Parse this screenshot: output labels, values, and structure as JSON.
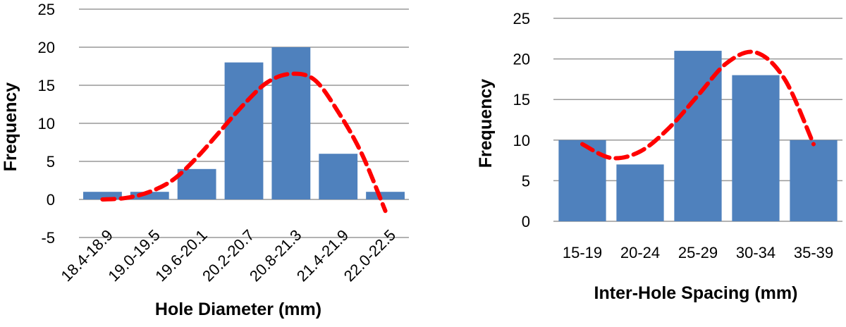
{
  "chart_data": [
    {
      "type": "bar",
      "title": "",
      "xlabel": "Hole Diameter (mm)",
      "ylabel": "Frequency",
      "categories": [
        "18.4-18.9",
        "19.0-19.5",
        "19.6-20.1",
        "20.2-20.7",
        "20.8-21.3",
        "21.4-21.9",
        "22.0-22.5"
      ],
      "values": [
        1,
        1,
        4,
        18,
        20,
        6,
        1
      ],
      "ylim": [
        -5,
        25
      ],
      "yticks": [
        "25",
        "20",
        "15",
        "10",
        "5",
        "0",
        "-5"
      ],
      "grid": true,
      "bar_color": "#4F81BD",
      "trend": {
        "style": "dashed",
        "color": "#FF0000",
        "x": [
          0,
          0.5,
          1,
          1.5,
          2,
          2.5,
          3,
          3.5,
          4,
          4.5,
          5,
          5.5,
          6
        ],
        "y": [
          0,
          0.2,
          1,
          2.6,
          5.5,
          9,
          12.5,
          15.4,
          16.5,
          15.7,
          11.5,
          6,
          -1.5
        ]
      }
    },
    {
      "type": "bar",
      "title": "",
      "xlabel": "Inter-Hole Spacing (mm)",
      "ylabel": "Frequency",
      "categories": [
        "15-19",
        "20-24",
        "25-29",
        "30-34",
        "35-39"
      ],
      "values": [
        10,
        7,
        21,
        18,
        10
      ],
      "ylim": [
        0,
        25
      ],
      "yticks": [
        "25",
        "20",
        "15",
        "10",
        "5",
        "0"
      ],
      "grid": true,
      "bar_color": "#4F81BD",
      "trend": {
        "style": "dashed",
        "color": "#FF0000",
        "x": [
          0,
          0.5,
          1,
          1.5,
          2,
          2.5,
          3,
          3.5,
          4
        ],
        "y": [
          9.5,
          7.8,
          8.6,
          11.5,
          15.5,
          19.5,
          20.8,
          17.5,
          9.5
        ]
      }
    }
  ]
}
